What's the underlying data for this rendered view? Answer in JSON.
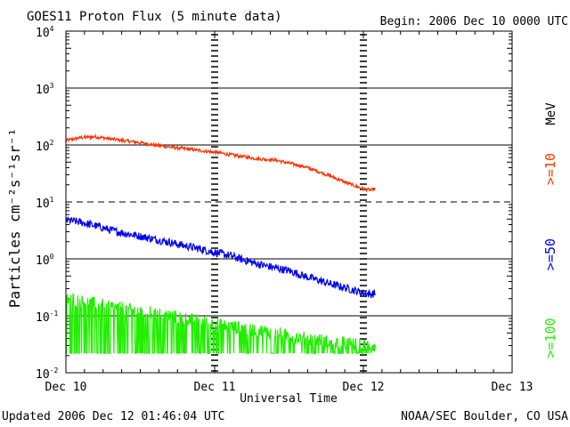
{
  "chart_data": {
    "type": "line",
    "title": "GOES11 Proton Flux (5 minute data)",
    "begin_label": "Begin: 2006 Dec 10 0000 UTC",
    "xlabel": "Universal Time",
    "ylabel": "Particles cm⁻²s⁻¹sr⁻¹",
    "yscale": "log",
    "ylim_exp": [
      -2,
      4
    ],
    "y_ticks": [
      {
        "base": "10",
        "exp": "-2"
      },
      {
        "base": "10",
        "exp": "-1"
      },
      {
        "base": "10",
        "exp": "0"
      },
      {
        "base": "10",
        "exp": "1"
      },
      {
        "base": "10",
        "exp": "2"
      },
      {
        "base": "10",
        "exp": "3"
      },
      {
        "base": "10",
        "exp": "4"
      }
    ],
    "xlim_days": [
      0,
      3
    ],
    "x_ticks": [
      "Dec 10",
      "Dec 11",
      "Dec 12",
      "Dec 13"
    ],
    "threshold_line_exp": 1,
    "series": [
      {
        "name": ">=10",
        "color": "#ff3300",
        "x_days": [
          0.0,
          0.1,
          0.2,
          0.3,
          0.4,
          0.5,
          0.6,
          0.7,
          0.8,
          0.9,
          1.0,
          1.1,
          1.2,
          1.3,
          1.4,
          1.5,
          1.6,
          1.7,
          1.8,
          1.9,
          2.0,
          2.05,
          2.08
        ],
        "y": [
          120,
          135,
          140,
          128,
          118,
          110,
          100,
          92,
          86,
          80,
          75,
          68,
          62,
          57,
          55,
          48,
          42,
          34,
          27,
          21,
          17,
          16,
          17
        ],
        "noise": 0.03
      },
      {
        "name": ">=50",
        "color": "#0000ee",
        "x_days": [
          0.0,
          0.1,
          0.2,
          0.3,
          0.4,
          0.5,
          0.6,
          0.7,
          0.8,
          0.9,
          1.0,
          1.1,
          1.2,
          1.3,
          1.4,
          1.5,
          1.6,
          1.7,
          1.8,
          1.9,
          2.0,
          2.05,
          2.08
        ],
        "y": [
          4.8,
          4.4,
          3.8,
          3.2,
          2.8,
          2.5,
          2.2,
          1.95,
          1.7,
          1.5,
          1.3,
          1.15,
          0.95,
          0.8,
          0.7,
          0.62,
          0.5,
          0.42,
          0.35,
          0.3,
          0.25,
          0.24,
          0.25
        ],
        "noise": 0.07
      },
      {
        "name": ">=100",
        "color": "#22ee00",
        "x_days": [
          0.0,
          0.2,
          0.4,
          0.6,
          0.8,
          1.0,
          1.2,
          1.4,
          1.6,
          1.8,
          2.0,
          2.08
        ],
        "y": [
          0.2,
          0.16,
          0.13,
          0.11,
          0.09,
          0.07,
          0.06,
          0.05,
          0.04,
          0.035,
          0.03,
          0.03
        ],
        "noise": 0.12,
        "floor": 0.022
      }
    ],
    "right_labels": {
      "unit": "MeV",
      "s1": ">=10",
      "s2": ">=50",
      "s3": ">=100"
    }
  },
  "footer": {
    "updated": "Updated 2006 Dec 12 01:46:04 UTC",
    "credit": "NOAA/SEC Boulder, CO USA"
  }
}
